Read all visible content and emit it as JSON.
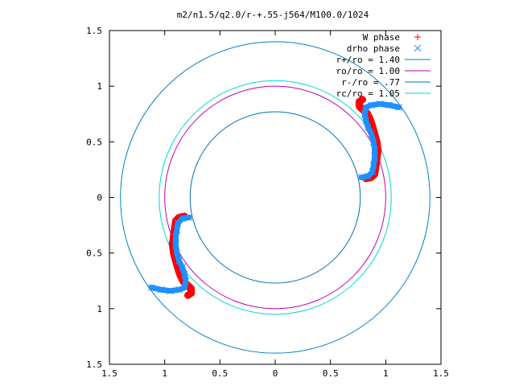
{
  "chart_data": {
    "type": "scatter",
    "title": "m2/n1.5/q2.0/r-+.55-j564/M100.0/1024",
    "xlabel": "",
    "ylabel": "",
    "xlim": [
      -1.5,
      1.5
    ],
    "ylim": [
      -1.5,
      1.5
    ],
    "x_ticks": [
      {
        "value": -1.5,
        "label": "1.5"
      },
      {
        "value": -1,
        "label": "1"
      },
      {
        "value": -0.5,
        "label": "0.5"
      },
      {
        "value": 0,
        "label": "0"
      },
      {
        "value": 0.5,
        "label": "0.5"
      },
      {
        "value": 1,
        "label": "1"
      },
      {
        "value": 1.5,
        "label": "1.5"
      }
    ],
    "y_ticks": [
      {
        "value": 1.5,
        "label": "1.5"
      },
      {
        "value": 1,
        "label": "1"
      },
      {
        "value": 0.5,
        "label": "0.5"
      },
      {
        "value": 0,
        "label": "0"
      },
      {
        "value": -0.5,
        "label": "0.5"
      },
      {
        "value": -1,
        "label": "1"
      },
      {
        "value": -1.5,
        "label": "1.5"
      }
    ],
    "grid": false,
    "legend_position": "top-right",
    "circles": [
      {
        "name": "r+/ro = 1.40",
        "radius": 1.4,
        "color": "#0080c0"
      },
      {
        "name": "ro/ro = 1.00",
        "radius": 1.0,
        "color": "#c000c0"
      },
      {
        "name": "r-/ro = .77",
        "radius": 0.77,
        "color": "#0070b0"
      },
      {
        "name": "rc/ro = 1.05",
        "radius": 1.05,
        "color": "#00d8d8"
      }
    ],
    "series": [
      {
        "name": "W phase",
        "marker": "+",
        "color": "#ff0000",
        "points": [
          [
            0.82,
            0.17
          ],
          [
            0.87,
            0.18
          ],
          [
            0.9,
            0.21
          ],
          [
            0.91,
            0.28
          ],
          [
            0.92,
            0.35
          ],
          [
            0.93,
            0.42
          ],
          [
            0.92,
            0.5
          ],
          [
            0.9,
            0.57
          ],
          [
            0.88,
            0.64
          ],
          [
            0.86,
            0.7
          ],
          [
            0.83,
            0.76
          ],
          [
            0.79,
            0.79
          ],
          [
            0.76,
            0.82
          ],
          [
            0.76,
            0.86
          ],
          [
            0.79,
            0.88
          ],
          [
            -0.82,
            -0.17
          ],
          [
            -0.87,
            -0.18
          ],
          [
            -0.9,
            -0.21
          ],
          [
            -0.91,
            -0.28
          ],
          [
            -0.92,
            -0.35
          ],
          [
            -0.93,
            -0.42
          ],
          [
            -0.92,
            -0.5
          ],
          [
            -0.9,
            -0.57
          ],
          [
            -0.88,
            -0.64
          ],
          [
            -0.86,
            -0.7
          ],
          [
            -0.83,
            -0.76
          ],
          [
            -0.79,
            -0.79
          ],
          [
            -0.76,
            -0.82
          ],
          [
            -0.76,
            -0.86
          ],
          [
            -0.79,
            -0.88
          ]
        ]
      },
      {
        "name": "drho phase",
        "marker": "x",
        "color": "#1e90ff",
        "points": [
          [
            0.78,
            0.18
          ],
          [
            0.84,
            0.19
          ],
          [
            0.88,
            0.23
          ],
          [
            0.89,
            0.29
          ],
          [
            0.9,
            0.36
          ],
          [
            0.9,
            0.43
          ],
          [
            0.89,
            0.5
          ],
          [
            0.87,
            0.57
          ],
          [
            0.84,
            0.63
          ],
          [
            0.82,
            0.69
          ],
          [
            0.81,
            0.75
          ],
          [
            0.82,
            0.81
          ],
          [
            0.87,
            0.83
          ],
          [
            0.95,
            0.84
          ],
          [
            1.03,
            0.83
          ],
          [
            1.12,
            0.81
          ],
          [
            -0.78,
            -0.18
          ],
          [
            -0.84,
            -0.19
          ],
          [
            -0.88,
            -0.23
          ],
          [
            -0.89,
            -0.29
          ],
          [
            -0.9,
            -0.36
          ],
          [
            -0.9,
            -0.43
          ],
          [
            -0.89,
            -0.5
          ],
          [
            -0.87,
            -0.57
          ],
          [
            -0.84,
            -0.63
          ],
          [
            -0.82,
            -0.69
          ],
          [
            -0.81,
            -0.75
          ],
          [
            -0.82,
            -0.81
          ],
          [
            -0.87,
            -0.83
          ],
          [
            -0.95,
            -0.84
          ],
          [
            -1.03,
            -0.83
          ],
          [
            -1.12,
            -0.81
          ]
        ]
      }
    ]
  }
}
